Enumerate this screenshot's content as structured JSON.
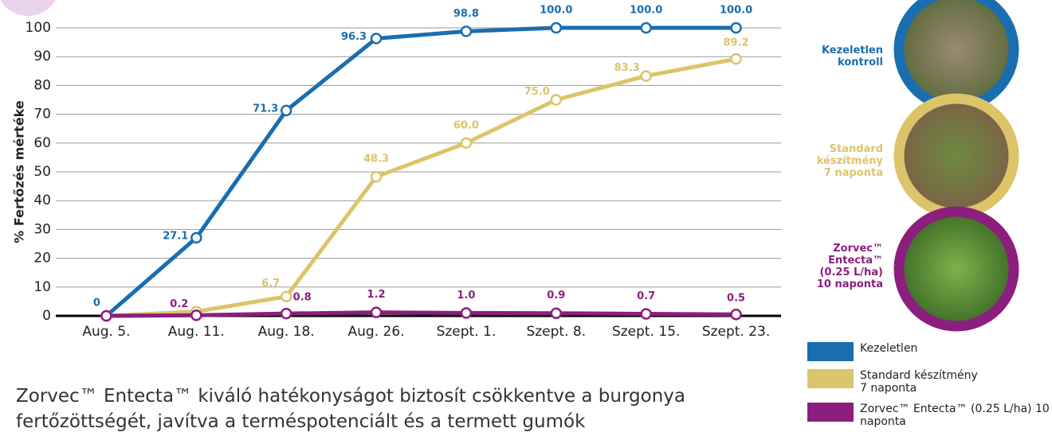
{
  "chart_data": {
    "type": "line",
    "ylabel": "% Fertőzés mértéke",
    "categories": [
      "Aug. 5.",
      "Aug. 11.",
      "Aug. 18.",
      "Aug. 26.",
      "Szept. 1.",
      "Szept. 8.",
      "Szept. 15.",
      "Szept. 23."
    ],
    "series": [
      {
        "name": "Kezeletlen",
        "color": "#1a6eb0",
        "values": [
          0,
          27.1,
          71.3,
          96.3,
          98.8,
          100,
          100,
          100
        ],
        "value_labels": [
          "0",
          "27.1",
          "71.3",
          "96.3",
          "98.8",
          "100.0",
          "100.0",
          "100.0"
        ]
      },
      {
        "name": "Standard készítmény 7 naponta",
        "color": "#dcc46a",
        "values": [
          0,
          1.5,
          6.7,
          48.3,
          60,
          75,
          83.3,
          89.2
        ],
        "value_labels": [
          null,
          null,
          "6.7",
          "48.3",
          "60.0",
          "75.0",
          "83.3",
          "89.2"
        ]
      },
      {
        "name": "Zorvec™ Entecta™ (0.25 L/ha) 10 naponta",
        "color": "#8c1e7e",
        "values": [
          0,
          0.2,
          0.8,
          1.2,
          1.0,
          0.9,
          0.7,
          0.5
        ],
        "value_labels": [
          null,
          "0.2",
          "0.8",
          "1.2",
          "1.0",
          "0.9",
          "0.7",
          "0.5"
        ]
      }
    ],
    "ylim": [
      0,
      100
    ],
    "yticks": [
      0,
      10,
      20,
      30,
      40,
      50,
      60,
      70,
      80,
      90,
      100
    ],
    "grid": true
  },
  "photo_labels": [
    "Kezeletlen kontroll",
    "Standard készítmény 7 naponta",
    "Zorvec™ Entecta™ (0.25 L/ha) 10 naponta"
  ],
  "caption": "Zorvec™ Entecta™ kiváló hatékonyságot biztosít csökkentve a burgonya fertőzöttségét, javítva a terméspotenciált és a termett gumók"
}
